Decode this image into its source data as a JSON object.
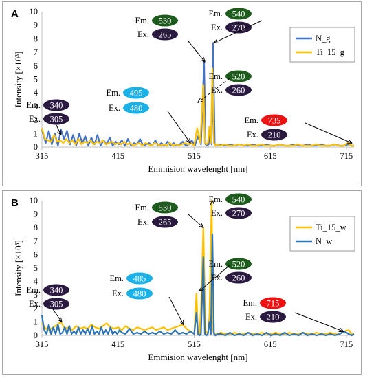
{
  "chart_data": [
    {
      "panel_label": "A",
      "type": "line",
      "xlabel": "Emmision wavelenght [nm]",
      "ylabel": "Intensity [×10³]",
      "xlim": [
        315,
        725
      ],
      "ylim": [
        0,
        10
      ],
      "x_ticks": [
        315,
        415,
        515,
        615,
        715
      ],
      "y_ticks": [
        0,
        1,
        2,
        3,
        4,
        5,
        6,
        7,
        8,
        9,
        10
      ],
      "grid": false,
      "legend_position": "top-right",
      "series": [
        {
          "name": "N_g",
          "color": "#4472c4",
          "x": [
            315,
            320,
            324,
            328,
            332,
            336,
            340,
            344,
            348,
            352,
            356,
            360,
            364,
            368,
            372,
            376,
            380,
            384,
            388,
            392,
            396,
            400,
            404,
            408,
            412,
            416,
            420,
            424,
            428,
            432,
            436,
            440,
            444,
            448,
            452,
            456,
            460,
            464,
            468,
            472,
            476,
            480,
            484,
            488,
            492,
            496,
            500,
            504,
            508,
            512,
            516,
            520,
            524,
            528,
            530,
            532,
            534,
            536,
            538,
            540,
            542,
            544,
            546,
            550,
            556,
            562,
            568,
            574,
            580,
            586,
            592,
            598,
            604,
            610,
            616,
            622,
            628,
            634,
            640,
            646,
            652,
            658,
            664,
            670,
            676,
            682,
            688,
            694,
            700,
            706,
            712,
            718,
            722,
            725
          ],
          "y": [
            1.3,
            0.3,
            1.2,
            0.2,
            1.0,
            0.1,
            1.3,
            0.6,
            1.2,
            0.2,
            0.9,
            0.1,
            1.0,
            0.3,
            0.8,
            0.1,
            0.7,
            0.2,
            0.9,
            0.1,
            0.5,
            0.2,
            0.7,
            0.1,
            0.4,
            0.2,
            0.5,
            0.1,
            0.6,
            0.1,
            0.3,
            0.2,
            0.6,
            0.1,
            0.2,
            0.3,
            0.1,
            0.5,
            0.1,
            0.3,
            0.1,
            0.4,
            0.1,
            0.3,
            0.1,
            0.2,
            0.4,
            0.1,
            0.2,
            0.5,
            0.1,
            0.8,
            0.2,
            6.3,
            0.2,
            0.1,
            0.2,
            1.0,
            0.2,
            7.7,
            0.2,
            0.1,
            0.1,
            0.2,
            0.1,
            0.2,
            0.1,
            0.2,
            0.1,
            0.1,
            0.2,
            0.1,
            0.1,
            0.2,
            0.1,
            0.1,
            0.2,
            0.1,
            0.1,
            0.2,
            0.1,
            0.1,
            0.2,
            0.1,
            0.1,
            0.2,
            0.1,
            0.1,
            0.2,
            0.1,
            0.1,
            0.2,
            0.1,
            0.1
          ]
        },
        {
          "name": "Ti_15_g",
          "color": "#ffc000",
          "x": [
            315,
            319,
            323,
            327,
            331,
            335,
            339,
            343,
            347,
            351,
            355,
            359,
            363,
            367,
            371,
            375,
            379,
            383,
            387,
            391,
            395,
            399,
            403,
            407,
            411,
            415,
            419,
            423,
            427,
            431,
            435,
            439,
            443,
            447,
            451,
            455,
            459,
            463,
            467,
            471,
            475,
            479,
            483,
            487,
            491,
            495,
            499,
            503,
            507,
            511,
            515,
            519,
            523,
            527,
            529,
            531,
            533,
            535,
            537,
            539,
            541,
            543,
            545,
            549,
            555,
            561,
            567,
            573,
            579,
            585,
            591,
            597,
            603,
            609,
            615,
            621,
            627,
            633,
            639,
            645,
            651,
            657,
            663,
            669,
            675,
            681,
            687,
            693,
            699,
            705,
            711,
            717,
            721,
            725
          ],
          "y": [
            1.4,
            0.6,
            0.5,
            0.4,
            0.9,
            0.4,
            0.5,
            0.3,
            0.6,
            0.3,
            0.5,
            0.2,
            0.6,
            0.2,
            0.4,
            0.3,
            0.5,
            0.2,
            0.4,
            0.3,
            0.5,
            0.2,
            0.3,
            0.4,
            0.2,
            0.3,
            0.2,
            0.4,
            0.2,
            0.3,
            0.1,
            0.2,
            0.3,
            0.1,
            0.3,
            0.2,
            0.1,
            0.3,
            0.2,
            0.1,
            0.2,
            0.1,
            0.3,
            0.1,
            0.2,
            0.1,
            0.2,
            0.3,
            0.2,
            0.3,
            0.1,
            1.4,
            0.3,
            4.6,
            0.3,
            0.2,
            0.3,
            1.5,
            0.3,
            5.8,
            0.3,
            0.1,
            0.2,
            0.1,
            0.2,
            0.1,
            0.1,
            0.2,
            0.1,
            0.2,
            0.1,
            0.1,
            0.2,
            0.1,
            0.1,
            0.1,
            0.2,
            0.1,
            0.1,
            0.1,
            0.2,
            0.1,
            0.1,
            0.1,
            0.2,
            0.1,
            0.1,
            0.1,
            0.2,
            0.1,
            0.1,
            0.3,
            0.1,
            0.1
          ]
        }
      ],
      "annotations": [
        {
          "em": "530",
          "ex": "265",
          "em_color": "#1e5c1e",
          "ex_color": "#2a1a40",
          "line": "solid",
          "target": [
            529,
            6.3
          ]
        },
        {
          "em": "540",
          "ex": "270",
          "em_color": "#1e5c1e",
          "ex_color": "#2a1a40",
          "line": "solid",
          "target": [
            541,
            7.7
          ]
        },
        {
          "em": "520",
          "ex": "260",
          "em_color": "#1e5c1e",
          "ex_color": "#2a1a40",
          "line": "dashed",
          "target": [
            520,
            3.3
          ]
        },
        {
          "em": "495",
          "ex": "480",
          "em_color": "#1ab0e8",
          "ex_color": "#1ab0e8",
          "line": "solid",
          "target": [
            510,
            0.3
          ]
        },
        {
          "em": "340",
          "ex": "305",
          "em_color": "#2a1a40",
          "ex_color": "#2a1a40",
          "line": "solid",
          "target": [
            340,
            0.9
          ]
        },
        {
          "em": "735",
          "ex": "210",
          "em_color": "#ee1111",
          "ex_color": "#2a1a40",
          "line": "solid",
          "target": [
            722,
            0.3
          ]
        }
      ]
    },
    {
      "panel_label": "B",
      "type": "line",
      "xlabel": "Emmision wavelenght [nm]",
      "ylabel": "Intensity [×10³]",
      "xlim": [
        315,
        725
      ],
      "ylim": [
        0,
        10
      ],
      "x_ticks": [
        315,
        415,
        515,
        615,
        715
      ],
      "y_ticks": [
        0,
        1,
        2,
        3,
        4,
        5,
        6,
        7,
        8,
        9,
        10
      ],
      "grid": false,
      "legend_position": "top-right",
      "series": [
        {
          "name": "Ti_15_w",
          "color": "#ffc000",
          "x": [
            315,
            320,
            325,
            330,
            335,
            340,
            345,
            350,
            355,
            360,
            365,
            370,
            375,
            380,
            385,
            390,
            395,
            400,
            405,
            410,
            415,
            420,
            425,
            430,
            435,
            440,
            445,
            450,
            455,
            460,
            465,
            470,
            475,
            480,
            485,
            490,
            495,
            500,
            505,
            510,
            515,
            518,
            520,
            522,
            524,
            527,
            530,
            533,
            535,
            538,
            540,
            542,
            546,
            550,
            556,
            562,
            568,
            574,
            580,
            586,
            592,
            598,
            604,
            610,
            616,
            622,
            628,
            634,
            640,
            646,
            652,
            658,
            664,
            670,
            676,
            682,
            688,
            694,
            700,
            706,
            712,
            718,
            722,
            725
          ],
          "y": [
            0.9,
            0.5,
            0.4,
            0.6,
            0.8,
            1.0,
            0.5,
            0.6,
            0.4,
            0.7,
            0.5,
            0.6,
            0.5,
            0.8,
            0.6,
            0.5,
            0.7,
            0.9,
            0.6,
            0.5,
            0.6,
            0.4,
            0.7,
            0.5,
            0.4,
            0.6,
            0.5,
            0.4,
            0.5,
            0.6,
            0.4,
            0.5,
            0.6,
            0.4,
            0.5,
            0.6,
            0.7,
            0.8,
            0.5,
            0.3,
            0.1,
            3.1,
            0.3,
            0.1,
            2.0,
            8.0,
            0.3,
            0.1,
            1.4,
            10.0,
            0.3,
            0.1,
            0.1,
            0.2,
            0.1,
            0.1,
            0.2,
            0.1,
            0.1,
            0.2,
            0.1,
            0.1,
            0.2,
            0.1,
            0.1,
            0.2,
            0.1,
            0.1,
            0.2,
            0.1,
            0.1,
            0.2,
            0.1,
            0.1,
            0.2,
            0.1,
            0.1,
            0.2,
            0.1,
            0.1,
            0.3,
            0.4,
            0.1,
            0.1
          ]
        },
        {
          "name": "N_w",
          "color": "#2e75b6",
          "x": [
            315,
            318,
            321,
            324,
            327,
            330,
            333,
            336,
            339,
            342,
            345,
            348,
            351,
            354,
            357,
            360,
            363,
            366,
            369,
            372,
            375,
            378,
            381,
            384,
            387,
            390,
            393,
            396,
            399,
            402,
            405,
            408,
            411,
            414,
            417,
            420,
            425,
            430,
            435,
            440,
            445,
            450,
            455,
            460,
            465,
            470,
            475,
            480,
            485,
            490,
            495,
            500,
            505,
            510,
            515,
            518,
            520,
            522,
            524,
            527,
            529,
            531,
            533,
            535,
            537,
            539,
            541,
            543,
            546,
            550,
            556,
            562,
            568,
            574,
            580,
            586,
            592,
            598,
            604,
            610,
            616,
            622,
            628,
            634,
            640,
            646,
            652,
            658,
            664,
            670,
            676,
            682,
            688,
            694,
            700,
            706,
            712,
            718,
            722,
            725
          ],
          "y": [
            1.5,
            0.4,
            0.1,
            0.8,
            0.1,
            0.6,
            0.1,
            0.8,
            0.1,
            0.2,
            0.6,
            0.1,
            0.7,
            0.1,
            0.3,
            0.1,
            0.6,
            0.1,
            0.4,
            0.1,
            0.5,
            0.1,
            0.7,
            0.1,
            0.3,
            0.1,
            0.6,
            0.1,
            0.4,
            0.1,
            0.6,
            0.1,
            0.3,
            0.1,
            0.4,
            0.2,
            0.1,
            0.5,
            0.1,
            0.2,
            0.1,
            0.3,
            0.1,
            0.2,
            0.1,
            0.3,
            0.1,
            0.2,
            0.1,
            0.4,
            0.1,
            0.2,
            0.1,
            0.3,
            0.1,
            1.7,
            0.1,
            0.0,
            0.1,
            5.8,
            0.1,
            0.0,
            0.1,
            1.0,
            0.1,
            7.5,
            0.1,
            0.0,
            0.1,
            0.1,
            0.0,
            0.2,
            0.0,
            0.1,
            0.0,
            0.2,
            0.0,
            0.1,
            0.0,
            0.2,
            0.0,
            0.1,
            0.0,
            0.2,
            0.0,
            0.1,
            0.0,
            0.2,
            0.0,
            0.1,
            0.0,
            0.1,
            0.0,
            0.1,
            0.0,
            0.1,
            0.3,
            0.1,
            0.0,
            0.1
          ]
        }
      ],
      "annotations": [
        {
          "em": "530",
          "ex": "265",
          "em_color": "#1e5c1e",
          "ex_color": "#2a1a40",
          "line": "solid",
          "target": [
            527,
            8.0
          ]
        },
        {
          "em": "540",
          "ex": "270",
          "em_color": "#1e5c1e",
          "ex_color": "#2a1a40",
          "line": "solid",
          "target": [
            539,
            10.0
          ]
        },
        {
          "em": "520",
          "ex": "260",
          "em_color": "#1e5c1e",
          "ex_color": "#2a1a40",
          "line": "solid",
          "target": [
            522,
            3.3
          ]
        },
        {
          "em": "485",
          "ex": "480",
          "em_color": "#1ab0e8",
          "ex_color": "#1ab0e8",
          "line": "solid",
          "target": [
            501,
            0.8
          ]
        },
        {
          "em": "340",
          "ex": "305",
          "em_color": "#2a1a40",
          "ex_color": "#2a1a40",
          "line": "solid",
          "target": [
            341,
            1.0
          ]
        },
        {
          "em": "715",
          "ex": "210",
          "em_color": "#ee1111",
          "ex_color": "#2a1a40",
          "line": "solid",
          "target": [
            711,
            0.3
          ]
        }
      ]
    }
  ]
}
